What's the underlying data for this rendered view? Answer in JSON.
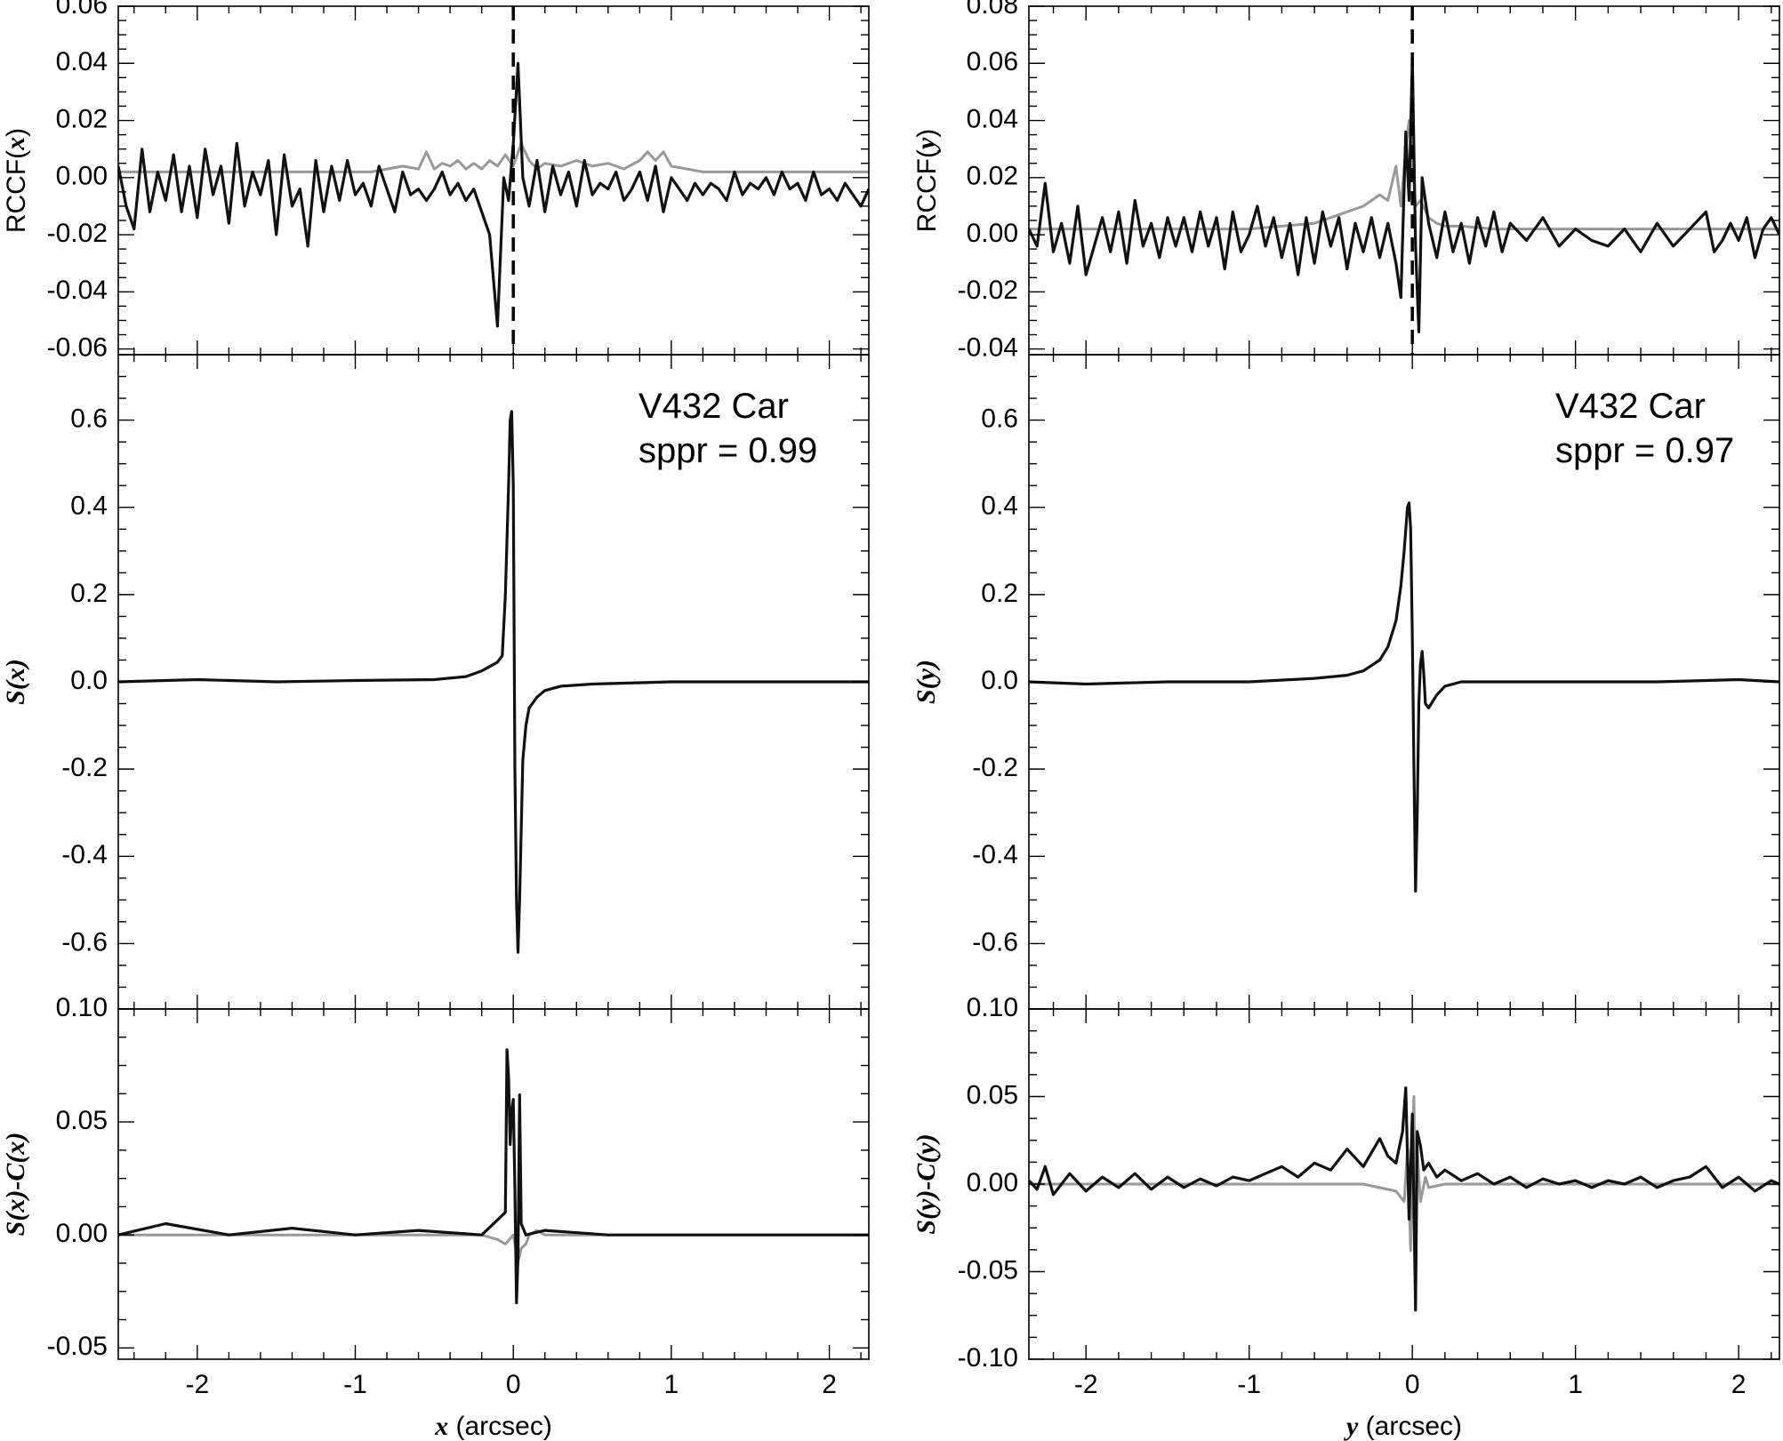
{
  "chart_data": [
    {
      "id": "rccf_x",
      "type": "line",
      "ylabel": "RCCF(x)",
      "xlim": [
        -2.5,
        2.25
      ],
      "ylim": [
        -0.062,
        0.06
      ],
      "yticks": [
        -0.06,
        -0.04,
        -0.02,
        0.0,
        0.02,
        0.04,
        0.06
      ],
      "ytick_labels": [
        "-0.06",
        "-0.04",
        "-0.02",
        "0.00",
        "0.02",
        "0.04",
        "0.06"
      ],
      "vline": {
        "x": 0.0,
        "style": "dashed"
      },
      "series": [
        {
          "color": "#111111",
          "x": [
            -2.5,
            -2.45,
            -2.4,
            -2.35,
            -2.3,
            -2.25,
            -2.2,
            -2.15,
            -2.1,
            -2.05,
            -2.0,
            -1.95,
            -1.9,
            -1.85,
            -1.8,
            -1.75,
            -1.7,
            -1.65,
            -1.6,
            -1.55,
            -1.5,
            -1.45,
            -1.4,
            -1.35,
            -1.3,
            -1.25,
            -1.2,
            -1.15,
            -1.1,
            -1.05,
            -1.0,
            -0.95,
            -0.9,
            -0.85,
            -0.8,
            -0.75,
            -0.7,
            -0.65,
            -0.6,
            -0.55,
            -0.5,
            -0.45,
            -0.4,
            -0.35,
            -0.3,
            -0.25,
            -0.2,
            -0.15,
            -0.1,
            -0.06,
            -0.03,
            0.0,
            0.03,
            0.06,
            0.1,
            0.15,
            0.2,
            0.25,
            0.3,
            0.35,
            0.4,
            0.45,
            0.5,
            0.55,
            0.6,
            0.65,
            0.7,
            0.75,
            0.8,
            0.85,
            0.9,
            0.95,
            1.0,
            1.05,
            1.1,
            1.15,
            1.2,
            1.25,
            1.3,
            1.35,
            1.4,
            1.45,
            1.5,
            1.55,
            1.6,
            1.65,
            1.7,
            1.75,
            1.8,
            1.85,
            1.9,
            1.95,
            2.0,
            2.05,
            2.1,
            2.15,
            2.2,
            2.25
          ],
          "y": [
            0.004,
            -0.01,
            -0.018,
            0.01,
            -0.012,
            0.002,
            -0.008,
            0.008,
            -0.012,
            0.004,
            -0.014,
            0.01,
            -0.006,
            0.004,
            -0.016,
            0.012,
            -0.01,
            0.002,
            -0.006,
            0.006,
            -0.02,
            0.008,
            -0.01,
            -0.004,
            -0.024,
            0.006,
            -0.012,
            0.004,
            -0.008,
            0.006,
            -0.006,
            -0.002,
            -0.01,
            0.004,
            -0.004,
            -0.012,
            0.002,
            -0.006,
            -0.004,
            -0.008,
            -0.004,
            0.002,
            -0.006,
            -0.002,
            -0.008,
            -0.004,
            -0.012,
            -0.02,
            -0.052,
            0.0,
            -0.008,
            0.012,
            0.04,
            0.0,
            -0.01,
            0.006,
            -0.012,
            0.004,
            -0.006,
            0.002,
            -0.01,
            0.006,
            -0.006,
            -0.002,
            -0.004,
            0.002,
            -0.008,
            -0.004,
            0.002,
            -0.008,
            0.004,
            -0.012,
            0.0,
            -0.004,
            -0.008,
            -0.002,
            -0.006,
            -0.002,
            -0.004,
            -0.008,
            0.002,
            -0.006,
            -0.002,
            -0.004,
            0.0,
            -0.006,
            0.002,
            -0.004,
            -0.002,
            -0.008,
            0.002,
            -0.006,
            -0.004,
            -0.008,
            -0.002,
            -0.006,
            -0.01,
            -0.004
          ]
        },
        {
          "color": "#999999",
          "x": [
            -2.5,
            -0.9,
            -0.8,
            -0.7,
            -0.6,
            -0.55,
            -0.5,
            -0.45,
            -0.4,
            -0.35,
            -0.3,
            -0.25,
            -0.2,
            -0.15,
            -0.1,
            -0.05,
            0.0,
            0.05,
            0.1,
            0.15,
            0.2,
            0.3,
            0.4,
            0.5,
            0.6,
            0.7,
            0.8,
            0.85,
            0.9,
            0.95,
            1.0,
            1.1,
            1.2,
            2.25
          ],
          "y": [
            0.002,
            0.002,
            0.003,
            0.004,
            0.003,
            0.009,
            0.003,
            0.005,
            0.004,
            0.006,
            0.003,
            0.005,
            0.003,
            0.006,
            0.004,
            0.008,
            0.004,
            0.012,
            0.006,
            0.003,
            0.005,
            0.004,
            0.006,
            0.004,
            0.005,
            0.003,
            0.006,
            0.009,
            0.006,
            0.009,
            0.004,
            0.003,
            0.002,
            0.002
          ]
        }
      ]
    },
    {
      "id": "rccf_y",
      "type": "line",
      "ylabel": "RCCF(y)",
      "xlim": [
        -2.35,
        2.25
      ],
      "ylim": [
        -0.042,
        0.08
      ],
      "yticks": [
        -0.04,
        -0.02,
        0.0,
        0.02,
        0.04,
        0.06,
        0.08
      ],
      "ytick_labels": [
        "-0.04",
        "-0.02",
        "0.00",
        "0.02",
        "0.04",
        "0.06",
        "0.08"
      ],
      "vline": {
        "x": 0.0,
        "style": "dashed"
      },
      "series": [
        {
          "color": "#111111",
          "x": [
            -2.35,
            -2.3,
            -2.25,
            -2.2,
            -2.15,
            -2.1,
            -2.05,
            -2.0,
            -1.95,
            -1.9,
            -1.85,
            -1.8,
            -1.75,
            -1.7,
            -1.65,
            -1.6,
            -1.55,
            -1.5,
            -1.45,
            -1.4,
            -1.35,
            -1.3,
            -1.25,
            -1.2,
            -1.15,
            -1.1,
            -1.05,
            -1.0,
            -0.95,
            -0.9,
            -0.85,
            -0.8,
            -0.75,
            -0.7,
            -0.65,
            -0.6,
            -0.55,
            -0.5,
            -0.45,
            -0.4,
            -0.35,
            -0.3,
            -0.25,
            -0.2,
            -0.15,
            -0.1,
            -0.07,
            -0.04,
            -0.02,
            0.0,
            0.02,
            0.04,
            0.06,
            0.1,
            0.15,
            0.2,
            0.25,
            0.3,
            0.35,
            0.4,
            0.45,
            0.5,
            0.55,
            0.6,
            0.7,
            0.8,
            0.9,
            1.0,
            1.1,
            1.2,
            1.3,
            1.4,
            1.5,
            1.6,
            1.7,
            1.8,
            1.85,
            1.9,
            1.95,
            2.0,
            2.05,
            2.1,
            2.15,
            2.2,
            2.25
          ],
          "y": [
            0.002,
            -0.004,
            0.018,
            -0.006,
            0.004,
            -0.01,
            0.01,
            -0.014,
            -0.004,
            0.006,
            -0.006,
            0.008,
            -0.01,
            0.012,
            -0.004,
            0.004,
            -0.008,
            0.006,
            -0.004,
            0.006,
            -0.006,
            0.008,
            -0.004,
            0.006,
            -0.012,
            0.008,
            -0.006,
            0.0,
            0.01,
            -0.004,
            0.006,
            -0.008,
            0.004,
            -0.014,
            0.006,
            -0.01,
            0.008,
            -0.004,
            0.006,
            -0.012,
            0.004,
            -0.006,
            0.006,
            -0.008,
            0.004,
            -0.01,
            -0.022,
            0.036,
            0.012,
            0.062,
            -0.004,
            -0.034,
            0.02,
            0.004,
            -0.008,
            0.008,
            -0.006,
            0.004,
            -0.01,
            0.006,
            -0.004,
            0.008,
            -0.006,
            0.004,
            -0.002,
            0.006,
            -0.004,
            0.002,
            -0.002,
            -0.004,
            0.002,
            -0.006,
            0.004,
            -0.004,
            0.002,
            0.008,
            -0.006,
            -0.002,
            0.004,
            -0.002,
            0.006,
            -0.008,
            0.002,
            0.006,
            0.0
          ]
        },
        {
          "color": "#999999",
          "x": [
            -2.35,
            -1.0,
            -0.8,
            -0.6,
            -0.5,
            -0.4,
            -0.3,
            -0.2,
            -0.15,
            -0.1,
            -0.07,
            -0.04,
            -0.02,
            0.0,
            0.02,
            0.05,
            0.1,
            0.15,
            0.2,
            0.3,
            0.5,
            2.25
          ],
          "y": [
            0.002,
            0.002,
            0.003,
            0.004,
            0.006,
            0.008,
            0.01,
            0.014,
            0.012,
            0.024,
            0.01,
            0.03,
            0.04,
            0.025,
            0.01,
            0.012,
            0.006,
            0.004,
            0.003,
            0.003,
            0.002,
            0.002
          ]
        }
      ]
    },
    {
      "id": "s_x",
      "type": "line",
      "ylabel": "S(x)",
      "xlim": [
        -2.5,
        2.25
      ],
      "ylim": [
        -0.75,
        0.75
      ],
      "yticks": [
        -0.6,
        -0.4,
        -0.2,
        0.0,
        0.2,
        0.4,
        0.6
      ],
      "ytick_labels": [
        "-0.6",
        "-0.4",
        "-0.2",
        "0.0",
        "0.2",
        "0.4",
        "0.6"
      ],
      "annotations": [
        "V432 Car",
        "sppr = 0.99"
      ],
      "series": [
        {
          "color": "#111111",
          "x": [
            -2.5,
            -2.0,
            -1.5,
            -1.0,
            -0.5,
            -0.3,
            -0.2,
            -0.15,
            -0.1,
            -0.07,
            -0.05,
            -0.03,
            -0.02,
            -0.01,
            0.0,
            0.01,
            0.02,
            0.03,
            0.04,
            0.06,
            0.08,
            0.1,
            0.15,
            0.2,
            0.3,
            0.5,
            1.0,
            1.5,
            2.0,
            2.25
          ],
          "y": [
            0.0,
            0.005,
            0.0,
            0.003,
            0.005,
            0.012,
            0.025,
            0.035,
            0.045,
            0.06,
            0.2,
            0.45,
            0.6,
            0.62,
            0.45,
            -0.2,
            -0.5,
            -0.62,
            -0.5,
            -0.18,
            -0.1,
            -0.06,
            -0.035,
            -0.02,
            -0.01,
            -0.005,
            0.0,
            0.0,
            0.0,
            0.0
          ]
        }
      ]
    },
    {
      "id": "s_y",
      "type": "line",
      "ylabel": "S(y)",
      "xlim": [
        -2.35,
        2.25
      ],
      "ylim": [
        -0.75,
        0.75
      ],
      "yticks": [
        -0.6,
        -0.4,
        -0.2,
        0.0,
        0.2,
        0.4,
        0.6
      ],
      "ytick_labels": [
        "-0.6",
        "-0.4",
        "-0.2",
        "0.0",
        "0.2",
        "0.4",
        "0.6"
      ],
      "annotations": [
        "V432 Car",
        "sppr = 0.97"
      ],
      "series": [
        {
          "color": "#111111",
          "x": [
            -2.35,
            -2.0,
            -1.5,
            -1.0,
            -0.6,
            -0.4,
            -0.3,
            -0.2,
            -0.15,
            -0.1,
            -0.07,
            -0.05,
            -0.03,
            -0.02,
            -0.01,
            0.0,
            0.01,
            0.02,
            0.03,
            0.04,
            0.05,
            0.06,
            0.07,
            0.08,
            0.1,
            0.15,
            0.2,
            0.3,
            0.5,
            1.0,
            1.5,
            2.0,
            2.25
          ],
          "y": [
            0.0,
            -0.005,
            0.0,
            0.0,
            0.008,
            0.015,
            0.025,
            0.05,
            0.08,
            0.14,
            0.22,
            0.3,
            0.4,
            0.41,
            0.35,
            0.1,
            -0.2,
            -0.48,
            -0.3,
            -0.05,
            0.04,
            0.07,
            0.02,
            -0.05,
            -0.06,
            -0.03,
            -0.01,
            0.0,
            0.0,
            0.0,
            0.0,
            0.005,
            0.0
          ]
        }
      ]
    },
    {
      "id": "sc_x",
      "type": "line",
      "ylabel": "S(x)-C(x)",
      "xlabel": "x (arcsec)",
      "xlim": [
        -2.5,
        2.25
      ],
      "ylim": [
        -0.055,
        0.1
      ],
      "yticks": [
        -0.05,
        0.0,
        0.05,
        0.1
      ],
      "ytick_labels": [
        "-0.05",
        "0.00",
        "0.05",
        "0.10"
      ],
      "xticks": [
        -2,
        -1,
        0,
        1,
        2
      ],
      "xtick_labels": [
        "-2",
        "-1",
        "0",
        "1",
        "2"
      ],
      "series": [
        {
          "color": "#111111",
          "x": [
            -2.5,
            -2.2,
            -1.8,
            -1.4,
            -1.0,
            -0.6,
            -0.2,
            -0.05,
            -0.04,
            -0.03,
            -0.02,
            -0.01,
            0.0,
            0.01,
            0.02,
            0.03,
            0.04,
            0.05,
            0.08,
            0.2,
            0.6,
            1.0,
            1.5,
            2.0,
            2.25
          ],
          "y": [
            0.0,
            0.005,
            0.0,
            0.003,
            0.0,
            0.002,
            0.0,
            0.01,
            0.082,
            0.07,
            0.04,
            0.055,
            0.06,
            0.02,
            -0.03,
            -0.01,
            0.062,
            0.005,
            0.0,
            0.002,
            0.0,
            0.0,
            0.0,
            0.0,
            0.0
          ]
        },
        {
          "color": "#999999",
          "x": [
            -2.5,
            -0.2,
            -0.1,
            -0.05,
            0.0,
            0.03,
            0.05,
            0.08,
            0.1,
            0.15,
            0.2,
            2.25
          ],
          "y": [
            0.0,
            0.0,
            -0.002,
            -0.004,
            0.0,
            -0.012,
            -0.006,
            -0.004,
            0.0,
            0.002,
            0.0,
            0.0
          ]
        }
      ]
    },
    {
      "id": "sc_y",
      "type": "line",
      "ylabel": "S(y)-C(y)",
      "xlabel": "y (arcsec)",
      "xlim": [
        -2.35,
        2.25
      ],
      "ylim": [
        -0.1,
        0.1
      ],
      "yticks": [
        -0.1,
        -0.05,
        0.0,
        0.05,
        0.1
      ],
      "ytick_labels": [
        "-0.10",
        "-0.05",
        "0.00",
        "0.05",
        "0.10"
      ],
      "xticks": [
        -2,
        -1,
        0,
        1,
        2
      ],
      "xtick_labels": [
        "-2",
        "-1",
        "0",
        "1",
        "2"
      ],
      "series": [
        {
          "color": "#111111",
          "x": [
            -2.35,
            -2.3,
            -2.25,
            -2.2,
            -2.1,
            -2.0,
            -1.9,
            -1.8,
            -1.7,
            -1.6,
            -1.5,
            -1.4,
            -1.3,
            -1.2,
            -1.1,
            -1.0,
            -0.9,
            -0.8,
            -0.7,
            -0.6,
            -0.5,
            -0.4,
            -0.3,
            -0.2,
            -0.15,
            -0.1,
            -0.06,
            -0.04,
            -0.02,
            0.0,
            0.02,
            0.03,
            0.05,
            0.07,
            0.1,
            0.15,
            0.2,
            0.3,
            0.4,
            0.5,
            0.6,
            0.7,
            0.8,
            0.9,
            1.0,
            1.1,
            1.2,
            1.3,
            1.4,
            1.5,
            1.6,
            1.7,
            1.8,
            1.9,
            2.0,
            2.1,
            2.2,
            2.25
          ],
          "y": [
            0.002,
            -0.003,
            0.01,
            -0.006,
            0.006,
            -0.004,
            0.004,
            -0.002,
            0.006,
            -0.003,
            0.004,
            -0.002,
            0.003,
            -0.001,
            0.004,
            0.002,
            0.006,
            0.01,
            0.004,
            0.012,
            0.008,
            0.02,
            0.01,
            0.026,
            0.016,
            0.012,
            0.03,
            0.055,
            -0.02,
            0.04,
            -0.072,
            0.03,
            0.022,
            0.008,
            0.012,
            0.004,
            0.008,
            0.002,
            0.006,
            0.0,
            0.004,
            -0.002,
            0.003,
            0.0,
            0.002,
            -0.002,
            0.002,
            0.0,
            0.004,
            -0.002,
            0.002,
            0.004,
            0.01,
            -0.002,
            0.004,
            -0.004,
            0.002,
            0.0
          ]
        },
        {
          "color": "#999999",
          "x": [
            -2.35,
            -0.3,
            -0.1,
            -0.05,
            -0.03,
            -0.01,
            0.0,
            0.01,
            0.02,
            0.03,
            0.05,
            0.08,
            0.1,
            0.2,
            2.25
          ],
          "y": [
            0.0,
            0.0,
            -0.004,
            -0.01,
            0.02,
            -0.038,
            0.03,
            0.05,
            -0.03,
            0.02,
            -0.01,
            0.004,
            -0.002,
            0.0,
            0.0
          ]
        }
      ]
    }
  ]
}
